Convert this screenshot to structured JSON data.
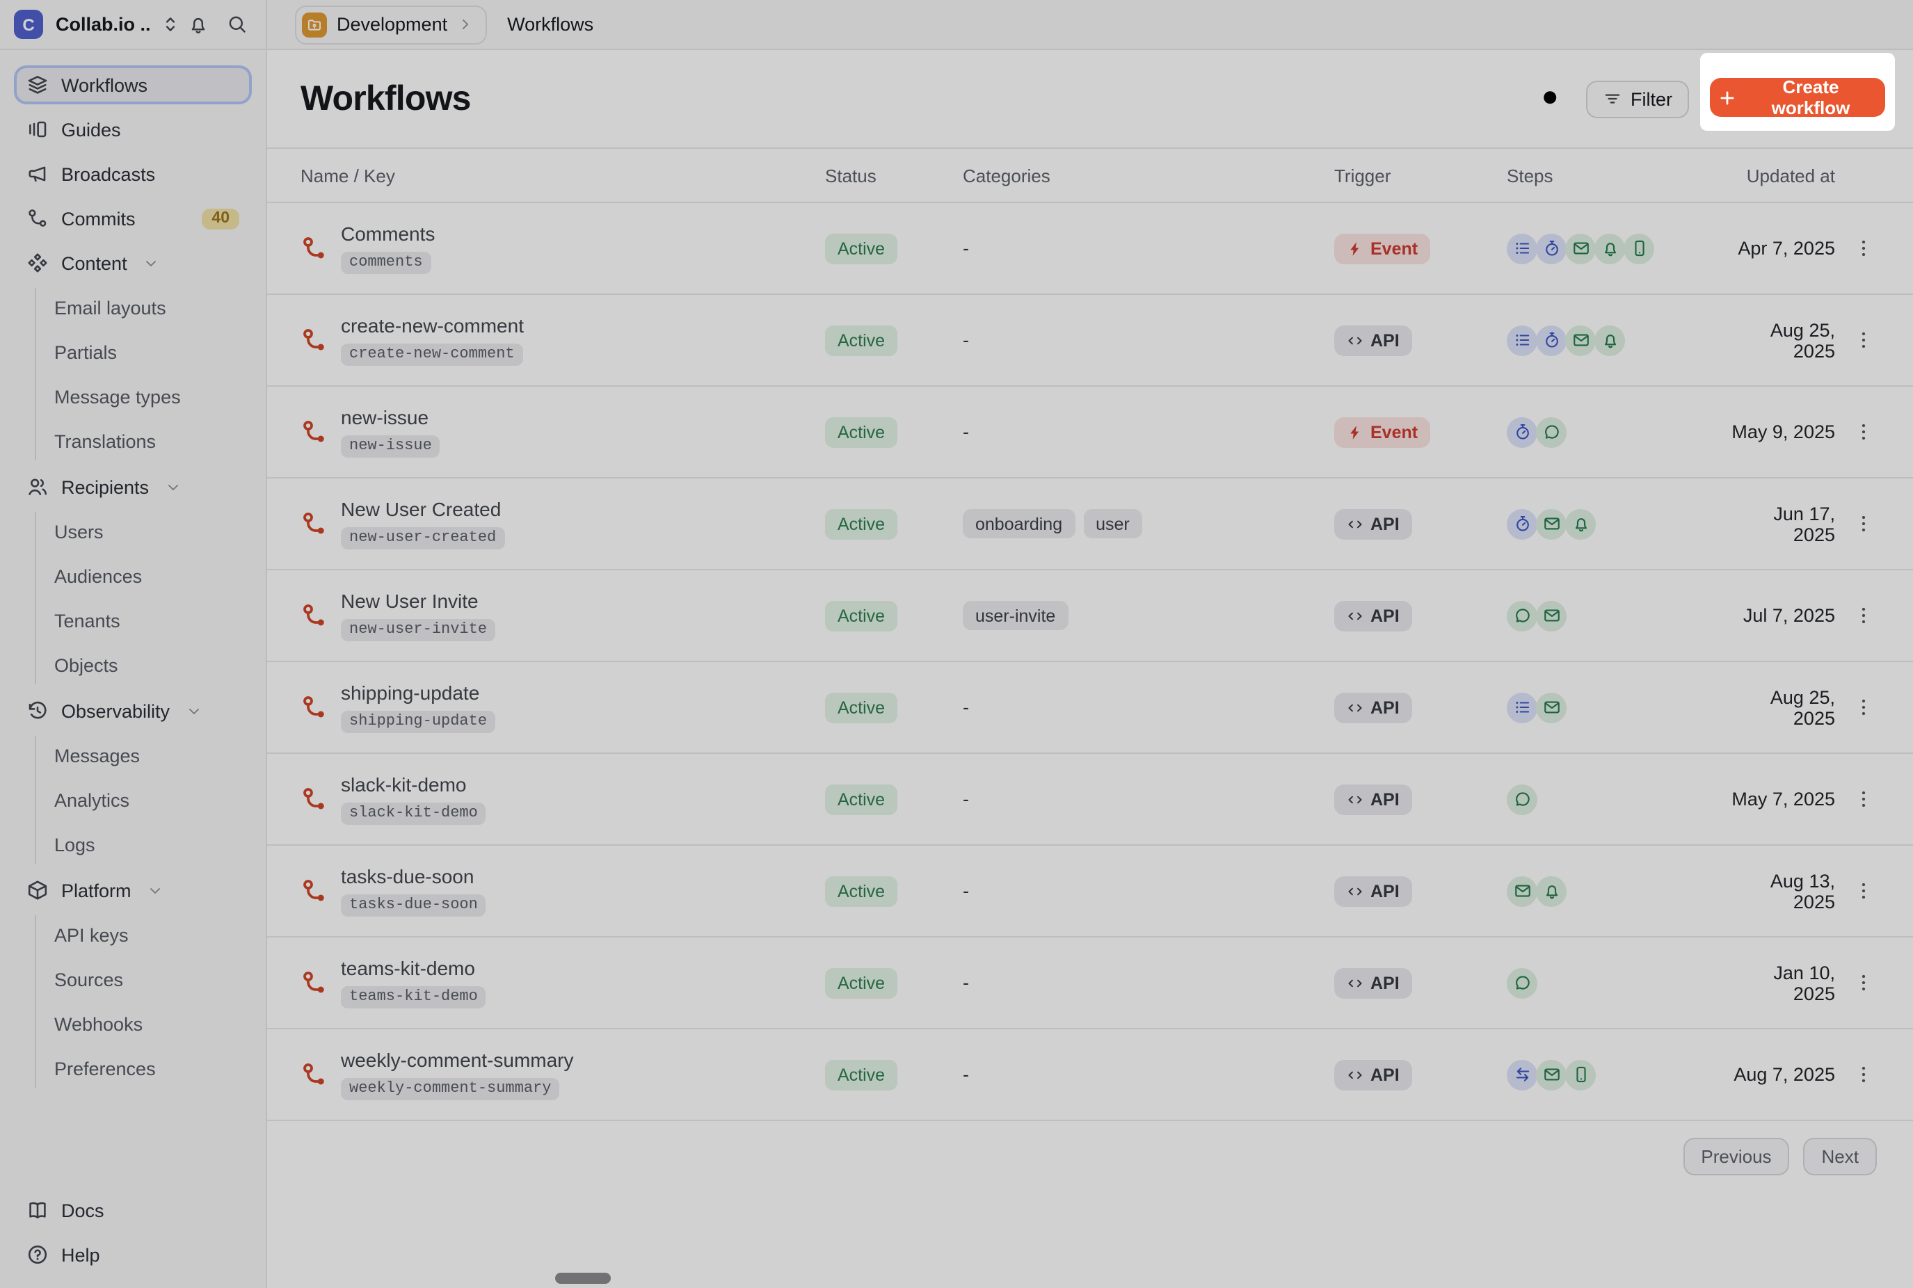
{
  "topbar": {
    "org_name": "Collab.io ...",
    "org_initial": "C",
    "breadcrumb": {
      "environment": "Development",
      "page": "Workflows"
    }
  },
  "sidebar": {
    "items": [
      {
        "type": "item",
        "icon": "layers",
        "label": "Workflows",
        "selected": true
      },
      {
        "type": "item",
        "icon": "guides",
        "label": "Guides"
      },
      {
        "type": "item",
        "icon": "megaphone",
        "label": "Broadcasts"
      },
      {
        "type": "item",
        "icon": "commits",
        "label": "Commits",
        "badge": "40"
      },
      {
        "type": "group",
        "icon": "content",
        "label": "Content",
        "children": [
          "Email layouts",
          "Partials",
          "Message types",
          "Translations"
        ]
      },
      {
        "type": "group",
        "icon": "recipients",
        "label": "Recipients",
        "children": [
          "Users",
          "Audiences",
          "Tenants",
          "Objects"
        ]
      },
      {
        "type": "group",
        "icon": "history",
        "label": "Observability",
        "children": [
          "Messages",
          "Analytics",
          "Logs"
        ]
      },
      {
        "type": "group",
        "icon": "package",
        "label": "Platform",
        "children": [
          "API keys",
          "Sources",
          "Webhooks",
          "Preferences"
        ]
      }
    ],
    "footer": [
      {
        "icon": "book",
        "label": "Docs"
      },
      {
        "icon": "help",
        "label": "Help"
      }
    ]
  },
  "header": {
    "title": "Workflows",
    "filter_label": "Filter",
    "create_label": "Create workflow"
  },
  "table": {
    "columns": [
      "Name / Key",
      "Status",
      "Categories",
      "Trigger",
      "Steps",
      "Updated at"
    ],
    "rows": [
      {
        "name": "Comments",
        "key": "comments",
        "status": "Active",
        "categories": [],
        "trigger": {
          "type": "event",
          "label": "Event"
        },
        "steps": [
          "list",
          "stopwatch",
          "envelope",
          "bell",
          "phone"
        ],
        "updated": "Apr 7, 2025"
      },
      {
        "name": "create-new-comment",
        "key": "create-new-comment",
        "status": "Active",
        "categories": [],
        "trigger": {
          "type": "api",
          "label": "API"
        },
        "steps": [
          "list",
          "stopwatch",
          "envelope",
          "bell"
        ],
        "updated": "Aug 25, 2025"
      },
      {
        "name": "new-issue",
        "key": "new-issue",
        "status": "Active",
        "categories": [],
        "trigger": {
          "type": "event",
          "label": "Event"
        },
        "steps": [
          "stopwatch",
          "chat"
        ],
        "updated": "May 9, 2025"
      },
      {
        "name": "New User Created",
        "key": "new-user-created",
        "status": "Active",
        "categories": [
          "onboarding",
          "user"
        ],
        "trigger": {
          "type": "api",
          "label": "API"
        },
        "steps": [
          "stopwatch",
          "envelope",
          "bell"
        ],
        "updated": "Jun 17, 2025"
      },
      {
        "name": "New User Invite",
        "key": "new-user-invite",
        "status": "Active",
        "categories": [
          "user-invite"
        ],
        "trigger": {
          "type": "api",
          "label": "API"
        },
        "steps": [
          "chat",
          "envelope"
        ],
        "updated": "Jul 7, 2025"
      },
      {
        "name": "shipping-update",
        "key": "shipping-update",
        "status": "Active",
        "categories": [],
        "trigger": {
          "type": "api",
          "label": "API"
        },
        "steps": [
          "list",
          "envelope"
        ],
        "updated": "Aug 25, 2025"
      },
      {
        "name": "slack-kit-demo",
        "key": "slack-kit-demo",
        "status": "Active",
        "categories": [],
        "trigger": {
          "type": "api",
          "label": "API"
        },
        "steps": [
          "chat"
        ],
        "updated": "May 7, 2025"
      },
      {
        "name": "tasks-due-soon",
        "key": "tasks-due-soon",
        "status": "Active",
        "categories": [],
        "trigger": {
          "type": "api",
          "label": "API"
        },
        "steps": [
          "envelope",
          "bell"
        ],
        "updated": "Aug 13, 2025"
      },
      {
        "name": "teams-kit-demo",
        "key": "teams-kit-demo",
        "status": "Active",
        "categories": [],
        "trigger": {
          "type": "api",
          "label": "API"
        },
        "steps": [
          "chat"
        ],
        "updated": "Jan 10, 2025"
      },
      {
        "name": "weekly-comment-summary",
        "key": "weekly-comment-summary",
        "status": "Active",
        "categories": [],
        "trigger": {
          "type": "api",
          "label": "API"
        },
        "steps": [
          "swap",
          "envelope",
          "phone"
        ],
        "updated": "Aug 7, 2025"
      }
    ],
    "empty_categories_placeholder": "-"
  },
  "pagination": {
    "previous": "Previous",
    "next": "Next"
  },
  "colors": {
    "accent_button": "#ea5630",
    "active_badge_bg": "#e2f3e7",
    "active_badge_text": "#2e7d4f",
    "event_badge_bg": "#fbe5e2",
    "event_badge_text": "#cf3a31",
    "step_blue": "#3d56c4",
    "step_green": "#237a4e",
    "workflow_icon": "#cf4527",
    "env_icon_bg": "#de9a33",
    "logo_bg": "#5061cf",
    "dim_overlay": "rgba(0,0,0,0.18)"
  }
}
